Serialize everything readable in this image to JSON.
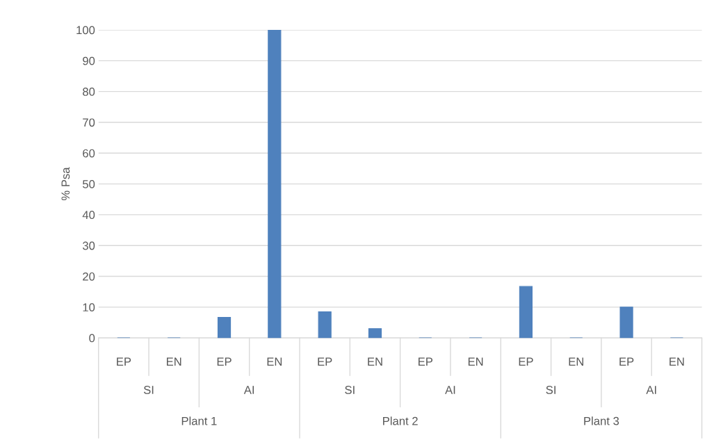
{
  "chart_data": {
    "type": "bar",
    "ylabel": "% Psa",
    "categories": [
      "EP",
      "EN",
      "EP",
      "EN",
      "EP",
      "EN",
      "EP",
      "EN",
      "EP",
      "EN",
      "EP",
      "EN"
    ],
    "values": [
      0,
      0,
      6.7,
      100,
      8.5,
      3,
      0,
      0,
      16.7,
      0,
      10,
      0
    ],
    "color": "#4f81bd",
    "ylim": [
      0,
      100
    ],
    "yticks": [
      0,
      10,
      20,
      30,
      40,
      50,
      60,
      70,
      80,
      90,
      100
    ],
    "grid": "y",
    "legend": false,
    "annotations": [
      "SI",
      "AI",
      "SI",
      "AI",
      "SI",
      "AI",
      "Plant 1",
      "Plant 2",
      "Plant 3"
    ]
  }
}
